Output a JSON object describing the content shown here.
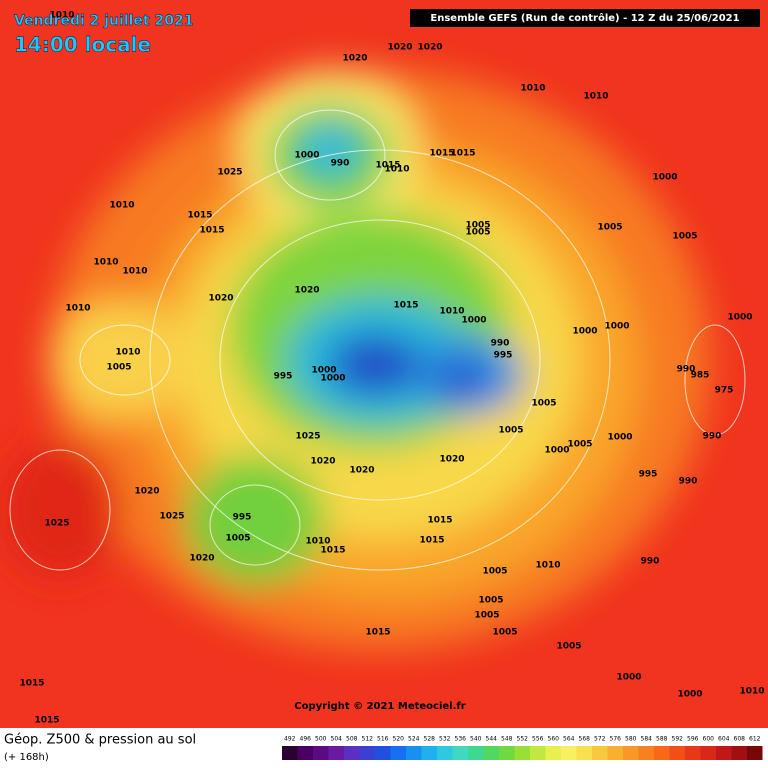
{
  "header": {
    "date": "Vendredi 2 juillet 2021",
    "time": "14:00 locale",
    "run": "Ensemble GEFS  (Run de contrôle)  -  12 Z du 25/06/2021"
  },
  "map": {
    "isobar_labels": [
      1010,
      1020,
      1020,
      1020,
      1010,
      1010,
      1000,
      990,
      1015,
      1010,
      1015,
      1015,
      1025,
      1000,
      1010,
      1015,
      1015,
      1005,
      1005,
      1005,
      1005,
      1010,
      1010,
      1010,
      1020,
      1015,
      1010,
      1000,
      1020,
      1000,
      1000,
      1000,
      990,
      995,
      1010,
      1005,
      995,
      1000,
      1000,
      990,
      985,
      975,
      1005,
      1005,
      1025,
      990,
      1000,
      1005,
      1000,
      1020,
      1020,
      1020,
      995,
      990,
      1020,
      1025,
      1025,
      995,
      1005,
      1015,
      1015,
      1010,
      1015,
      1020,
      1010,
      990,
      1005,
      1005,
      1005,
      1005,
      1015,
      1005,
      1000,
      1000,
      1010,
      1015,
      1015
    ]
  },
  "footer": {
    "copyright": "Copyright © 2021 Meteociel.fr",
    "title": "Géop. Z500 & pression au sol",
    "lead": "(+ 168h)",
    "scale": [
      492,
      496,
      500,
      504,
      508,
      512,
      516,
      520,
      524,
      528,
      532,
      536,
      540,
      544,
      548,
      552,
      556,
      560,
      564,
      568,
      572,
      576,
      580,
      584,
      588,
      592,
      596,
      600,
      604,
      608,
      612
    ]
  }
}
